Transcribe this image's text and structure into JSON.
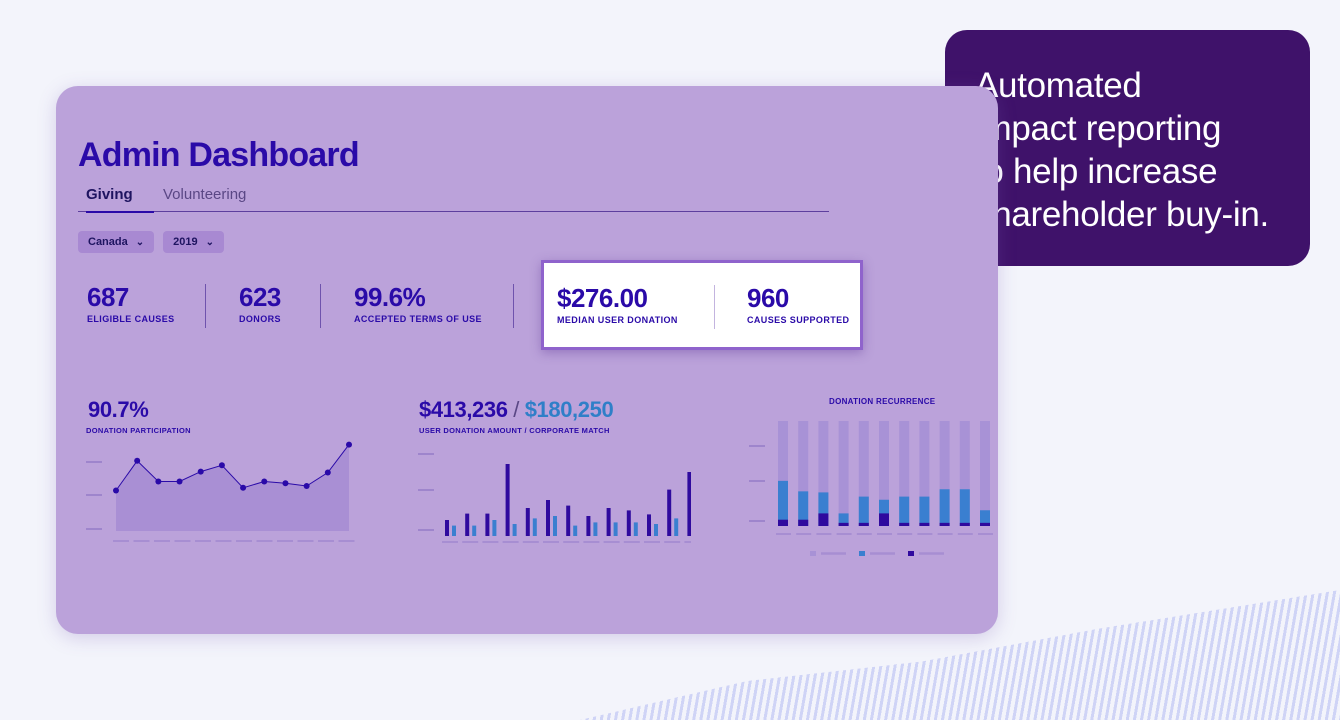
{
  "callout": {
    "lines": [
      "Automated",
      "impact reporting",
      "to help increase",
      "shareholder buy-in."
    ]
  },
  "dashboard": {
    "title": "Admin Dashboard",
    "tabs": [
      {
        "label": "Giving",
        "active": true
      },
      {
        "label": "Volunteering",
        "active": false
      }
    ],
    "filters": {
      "country": "Canada",
      "year": "2019"
    },
    "stats": [
      {
        "value": "687",
        "label": "ELIGIBLE CAUSES"
      },
      {
        "value": "623",
        "label": "DONORS"
      },
      {
        "value": "99.6%",
        "label": "ACCEPTED TERMS OF USE"
      }
    ],
    "highlight_stats": [
      {
        "value": "$276.00",
        "label": "MEDIAN USER DONATION"
      },
      {
        "value": "960",
        "label": "CAUSES SUPPORTED"
      }
    ]
  },
  "chart_data": [
    {
      "type": "area",
      "title": "90.7%",
      "subtitle": "DONATION PARTICIPATION",
      "values": [
        0.45,
        0.78,
        0.55,
        0.55,
        0.66,
        0.73,
        0.48,
        0.55,
        0.53,
        0.5,
        0.65,
        0.96
      ]
    },
    {
      "type": "bar",
      "title_primary": "$413,236",
      "title_separator": "/",
      "title_secondary": "$180,250",
      "subtitle": "USER DONATION AMOUNT / CORPORATE MATCH",
      "series": [
        {
          "values": [
            0.2,
            0.28,
            0.28,
            0.9,
            0.35,
            0.45,
            0.38,
            0.25,
            0.35,
            0.32,
            0.27,
            0.58,
            0.8
          ]
        },
        {
          "values": [
            0.13,
            0.13,
            0.2,
            0.15,
            0.22,
            0.25,
            0.13,
            0.17,
            0.17,
            0.17,
            0.15,
            0.22,
            0.32
          ]
        }
      ],
      "colors": [
        "#2f0a9e",
        "#3a7fd0"
      ]
    },
    {
      "type": "bar",
      "title": "DONATION RECURRENCE",
      "series": [
        {
          "values": [
            0.06,
            0.06,
            0.12,
            0.03,
            0.03,
            0.12,
            0.03,
            0.03,
            0.03,
            0.03,
            0.03
          ]
        },
        {
          "values": [
            0.43,
            0.33,
            0.32,
            0.12,
            0.28,
            0.25,
            0.28,
            0.28,
            0.35,
            0.35,
            0.15
          ]
        },
        {
          "values": [
            1,
            1,
            1,
            1,
            1,
            1,
            1,
            1,
            1,
            1,
            1
          ]
        }
      ],
      "colors": [
        "#2f0a9e",
        "#3a7fd0",
        "#a892d6"
      ]
    }
  ],
  "icons": {
    "dropdown": "chevron-down-icon"
  }
}
